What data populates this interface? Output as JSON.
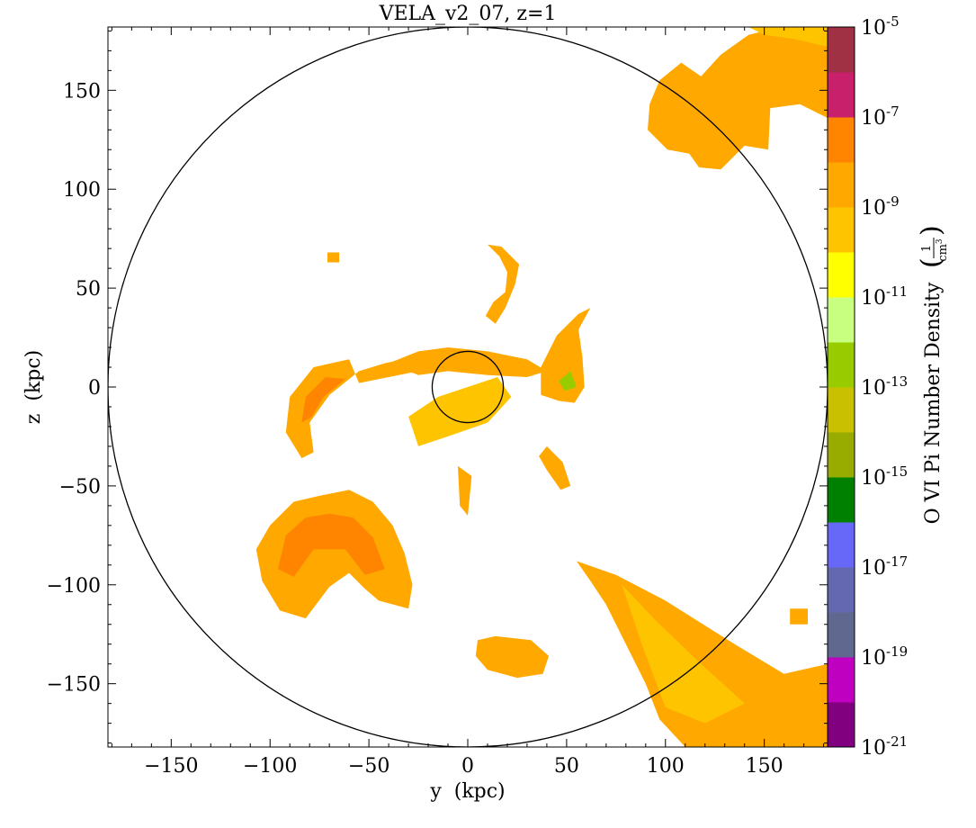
{
  "chart_data": {
    "type": "heatmap",
    "title": "VELA_v2_07, z=1",
    "xlabel": "y  (kpc)",
    "ylabel": "z  (kpc)",
    "xlim": [
      -182,
      182
    ],
    "ylim": [
      -182,
      182
    ],
    "xticks": [
      -150,
      -100,
      -50,
      0,
      50,
      100,
      150
    ],
    "yticks": [
      -150,
      -100,
      -50,
      0,
      50,
      100,
      150
    ],
    "xtick_labels": [
      "−150",
      "−100",
      "−50",
      "0",
      "50",
      "100",
      "150"
    ],
    "ytick_labels": [
      "−150",
      "−100",
      "−50",
      "0",
      "50",
      "100",
      "150"
    ],
    "circles": [
      {
        "cx": 0,
        "cy": 0,
        "r": 182
      },
      {
        "cx": 0,
        "cy": 0,
        "r": 18
      }
    ],
    "colorbar": {
      "label": "O VI Pi Number Density",
      "units_num": "1",
      "units_den": "cm",
      "units_den_exp": "3",
      "scale": "log",
      "range": [
        -21,
        -5
      ],
      "tick_exponents": [
        -5,
        -7,
        -9,
        -11,
        -13,
        -15,
        -17,
        -19,
        -21
      ],
      "tick_base": "10",
      "colors": [
        "#800080",
        "#c000c0",
        "#606890",
        "#6468b0",
        "#6868f8",
        "#008000",
        "#98ac00",
        "#c8c000",
        "#98cc00",
        "#c8ff80",
        "#ffff00",
        "#ffc400",
        "#ffa800",
        "#ff8400",
        "#c8206a",
        "#a03044"
      ]
    },
    "structures": [
      {
        "name": "north-east-blob",
        "level": -9,
        "points": [
          [
            97,
            155
          ],
          [
            108,
            164
          ],
          [
            118,
            157
          ],
          [
            128,
            168
          ],
          [
            142,
            178
          ],
          [
            158,
            182
          ],
          [
            182,
            182
          ],
          [
            182,
            136
          ],
          [
            168,
            143
          ],
          [
            153,
            141
          ],
          [
            152,
            120
          ],
          [
            140,
            122
          ],
          [
            128,
            110
          ],
          [
            117,
            111
          ],
          [
            112,
            118
          ],
          [
            101,
            120
          ],
          [
            91,
            130
          ],
          [
            92,
            143
          ]
        ]
      },
      {
        "name": "north-east-yellow",
        "level": -10,
        "points": [
          [
            142,
            182
          ],
          [
            150,
            178
          ],
          [
            165,
            176
          ],
          [
            182,
            172
          ],
          [
            182,
            182
          ]
        ]
      },
      {
        "name": "west-arc-outer",
        "level": -9,
        "points": [
          [
            -60,
            14
          ],
          [
            -78,
            10
          ],
          [
            -90,
            -5
          ],
          [
            -92,
            -23
          ],
          [
            -84,
            -36
          ],
          [
            -78,
            -33
          ],
          [
            -80,
            -18
          ],
          [
            -70,
            -4
          ],
          [
            -55,
            8
          ],
          [
            -42,
            12
          ],
          [
            -28,
            15
          ],
          [
            -25,
            8
          ],
          [
            -40,
            5
          ],
          [
            -55,
            2
          ]
        ]
      },
      {
        "name": "west-arc-inner",
        "level": -8,
        "points": [
          [
            -72,
            5
          ],
          [
            -82,
            -5
          ],
          [
            -84,
            -18
          ],
          [
            -79,
            -15
          ],
          [
            -73,
            -5
          ],
          [
            -62,
            4
          ]
        ]
      },
      {
        "name": "south-west-complex",
        "level": -9,
        "points": [
          [
            -100,
            -70
          ],
          [
            -88,
            -58
          ],
          [
            -75,
            -55
          ],
          [
            -60,
            -52
          ],
          [
            -48,
            -58
          ],
          [
            -38,
            -70
          ],
          [
            -32,
            -84
          ],
          [
            -28,
            -100
          ],
          [
            -30,
            -112
          ],
          [
            -45,
            -108
          ],
          [
            -52,
            -102
          ],
          [
            -60,
            -94
          ],
          [
            -70,
            -101
          ],
          [
            -82,
            -117
          ],
          [
            -95,
            -113
          ],
          [
            -104,
            -98
          ],
          [
            -107,
            -82
          ]
        ]
      },
      {
        "name": "south-west-inner",
        "level": -8,
        "points": [
          [
            -92,
            -75
          ],
          [
            -82,
            -66
          ],
          [
            -70,
            -64
          ],
          [
            -58,
            -66
          ],
          [
            -48,
            -76
          ],
          [
            -42,
            -92
          ],
          [
            -52,
            -95
          ],
          [
            -62,
            -82
          ],
          [
            -78,
            -82
          ],
          [
            -88,
            -96
          ],
          [
            -96,
            -92
          ]
        ]
      },
      {
        "name": "east-filament",
        "level": -9,
        "points": [
          [
            37,
            10
          ],
          [
            45,
            26
          ],
          [
            56,
            37
          ],
          [
            62,
            40
          ],
          [
            56,
            29
          ],
          [
            58,
            15
          ],
          [
            59,
            0
          ],
          [
            54,
            -8
          ],
          [
            46,
            -7
          ],
          [
            37,
            -4
          ]
        ]
      },
      {
        "name": "east-filament-green",
        "level": -13,
        "points": [
          [
            46,
            3
          ],
          [
            52,
            8
          ],
          [
            55,
            0
          ],
          [
            49,
            -2
          ]
        ]
      },
      {
        "name": "north-filament",
        "level": -9,
        "points": [
          [
            10,
            72
          ],
          [
            16,
            66
          ],
          [
            20,
            58
          ],
          [
            19,
            48
          ],
          [
            13,
            43
          ],
          [
            9,
            36
          ],
          [
            14,
            32
          ],
          [
            19,
            40
          ],
          [
            24,
            52
          ],
          [
            26,
            62
          ],
          [
            17,
            71
          ]
        ]
      },
      {
        "name": "south-east-filament",
        "level": -9,
        "points": [
          [
            55,
            -88
          ],
          [
            75,
            -95
          ],
          [
            100,
            -108
          ],
          [
            135,
            -130
          ],
          [
            160,
            -145
          ],
          [
            182,
            -140
          ],
          [
            182,
            -182
          ],
          [
            110,
            -182
          ],
          [
            97,
            -168
          ],
          [
            90,
            -150
          ],
          [
            80,
            -130
          ],
          [
            70,
            -110
          ],
          [
            62,
            -98
          ]
        ]
      },
      {
        "name": "south-east-inner",
        "level": -10,
        "points": [
          [
            78,
            -100
          ],
          [
            95,
            -118
          ],
          [
            118,
            -140
          ],
          [
            140,
            -160
          ],
          [
            120,
            -170
          ],
          [
            100,
            -162
          ],
          [
            88,
            -130
          ]
        ]
      },
      {
        "name": "south-blob",
        "level": -9,
        "points": [
          [
            5,
            -128
          ],
          [
            14,
            -126
          ],
          [
            32,
            -128
          ],
          [
            41,
            -136
          ],
          [
            38,
            -145
          ],
          [
            25,
            -147
          ],
          [
            10,
            -143
          ],
          [
            4,
            -136
          ]
        ]
      },
      {
        "name": "central-streak",
        "level": -9,
        "points": [
          [
            -40,
            12
          ],
          [
            -25,
            18
          ],
          [
            -10,
            20
          ],
          [
            10,
            18
          ],
          [
            30,
            14
          ],
          [
            40,
            8
          ],
          [
            30,
            5
          ],
          [
            10,
            6
          ],
          [
            -10,
            8
          ],
          [
            -25,
            6
          ]
        ]
      },
      {
        "name": "central-patch",
        "level": -10,
        "points": [
          [
            -30,
            -15
          ],
          [
            -15,
            -5
          ],
          [
            0,
            0
          ],
          [
            15,
            5
          ],
          [
            22,
            -5
          ],
          [
            10,
            -18
          ],
          [
            -10,
            -25
          ],
          [
            -25,
            -30
          ]
        ]
      },
      {
        "name": "south-center-strip",
        "level": -9,
        "points": [
          [
            -5,
            -40
          ],
          [
            2,
            -45
          ],
          [
            0,
            -65
          ],
          [
            -4,
            -60
          ]
        ]
      },
      {
        "name": "east-small",
        "level": -9,
        "points": [
          [
            40,
            -30
          ],
          [
            48,
            -38
          ],
          [
            52,
            -50
          ],
          [
            47,
            -52
          ],
          [
            40,
            -42
          ],
          [
            36,
            -35
          ]
        ]
      },
      {
        "name": "far-east-small",
        "level": -9,
        "points": [
          [
            163,
            -112
          ],
          [
            172,
            -112
          ],
          [
            172,
            -120
          ],
          [
            163,
            -120
          ]
        ]
      },
      {
        "name": "north-west-dot",
        "level": -9,
        "points": [
          [
            -71,
            68
          ],
          [
            -65,
            68
          ],
          [
            -65,
            63
          ],
          [
            -71,
            63
          ]
        ]
      }
    ]
  }
}
